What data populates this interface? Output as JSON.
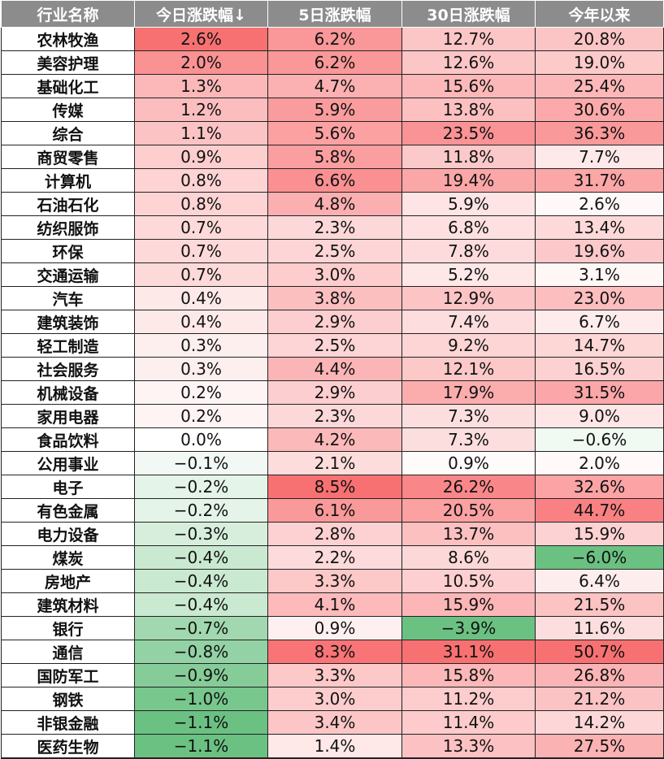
{
  "columns": [
    "行业名称",
    "今日涨跌幅↓",
    "5日涨跌幅",
    "30日涨跌幅",
    "今年以来"
  ],
  "colors": {
    "header_bg": "#8c8c8c",
    "positive": "#f8696b",
    "negative": "#63be7b",
    "neutral": "#ffffff"
  },
  "rows": [
    {
      "name": "农林牧渔",
      "d1": "2.6%",
      "d5": "6.2%",
      "d30": "12.7%",
      "ytd": "20.8%"
    },
    {
      "name": "美容护理",
      "d1": "2.0%",
      "d5": "6.2%",
      "d30": "12.6%",
      "ytd": "19.0%"
    },
    {
      "name": "基础化工",
      "d1": "1.3%",
      "d5": "4.7%",
      "d30": "15.6%",
      "ytd": "25.4%"
    },
    {
      "name": "传媒",
      "d1": "1.2%",
      "d5": "5.9%",
      "d30": "13.8%",
      "ytd": "30.6%"
    },
    {
      "name": "综合",
      "d1": "1.1%",
      "d5": "5.6%",
      "d30": "23.5%",
      "ytd": "36.3%"
    },
    {
      "name": "商贸零售",
      "d1": "0.9%",
      "d5": "5.8%",
      "d30": "11.8%",
      "ytd": "7.7%"
    },
    {
      "name": "计算机",
      "d1": "0.8%",
      "d5": "6.6%",
      "d30": "19.4%",
      "ytd": "31.7%"
    },
    {
      "name": "石油石化",
      "d1": "0.8%",
      "d5": "4.8%",
      "d30": "5.9%",
      "ytd": "2.6%"
    },
    {
      "name": "纺织服饰",
      "d1": "0.7%",
      "d5": "2.3%",
      "d30": "6.8%",
      "ytd": "13.4%"
    },
    {
      "name": "环保",
      "d1": "0.7%",
      "d5": "2.5%",
      "d30": "7.8%",
      "ytd": "19.6%"
    },
    {
      "name": "交通运输",
      "d1": "0.7%",
      "d5": "3.0%",
      "d30": "5.2%",
      "ytd": "3.1%"
    },
    {
      "name": "汽车",
      "d1": "0.4%",
      "d5": "3.8%",
      "d30": "12.9%",
      "ytd": "23.0%"
    },
    {
      "name": "建筑装饰",
      "d1": "0.4%",
      "d5": "2.9%",
      "d30": "7.4%",
      "ytd": "6.7%"
    },
    {
      "name": "轻工制造",
      "d1": "0.3%",
      "d5": "2.5%",
      "d30": "9.2%",
      "ytd": "14.7%"
    },
    {
      "name": "社会服务",
      "d1": "0.3%",
      "d5": "4.4%",
      "d30": "12.1%",
      "ytd": "16.5%"
    },
    {
      "name": "机械设备",
      "d1": "0.2%",
      "d5": "2.9%",
      "d30": "17.9%",
      "ytd": "31.5%"
    },
    {
      "name": "家用电器",
      "d1": "0.2%",
      "d5": "2.3%",
      "d30": "7.3%",
      "ytd": "9.0%"
    },
    {
      "name": "食品饮料",
      "d1": "0.0%",
      "d5": "4.2%",
      "d30": "7.3%",
      "ytd": "−0.6%"
    },
    {
      "name": "公用事业",
      "d1": "−0.1%",
      "d5": "2.1%",
      "d30": "0.9%",
      "ytd": "2.0%"
    },
    {
      "name": "电子",
      "d1": "−0.2%",
      "d5": "8.5%",
      "d30": "26.2%",
      "ytd": "32.6%"
    },
    {
      "name": "有色金属",
      "d1": "−0.2%",
      "d5": "6.1%",
      "d30": "20.5%",
      "ytd": "44.7%"
    },
    {
      "name": "电力设备",
      "d1": "−0.3%",
      "d5": "2.8%",
      "d30": "13.7%",
      "ytd": "15.9%"
    },
    {
      "name": "煤炭",
      "d1": "−0.4%",
      "d5": "2.2%",
      "d30": "8.6%",
      "ytd": "−6.0%"
    },
    {
      "name": "房地产",
      "d1": "−0.4%",
      "d5": "3.3%",
      "d30": "10.5%",
      "ytd": "6.4%"
    },
    {
      "name": "建筑材料",
      "d1": "−0.4%",
      "d5": "4.1%",
      "d30": "15.9%",
      "ytd": "21.5%"
    },
    {
      "name": "银行",
      "d1": "−0.7%",
      "d5": "0.9%",
      "d30": "−3.9%",
      "ytd": "11.6%"
    },
    {
      "name": "通信",
      "d1": "−0.8%",
      "d5": "8.3%",
      "d30": "31.1%",
      "ytd": "50.7%"
    },
    {
      "name": "国防军工",
      "d1": "−0.9%",
      "d5": "3.3%",
      "d30": "15.8%",
      "ytd": "26.8%"
    },
    {
      "name": "钢铁",
      "d1": "−1.0%",
      "d5": "3.0%",
      "d30": "11.2%",
      "ytd": "21.2%"
    },
    {
      "name": "非银金融",
      "d1": "−1.1%",
      "d5": "3.4%",
      "d30": "11.4%",
      "ytd": "14.2%"
    },
    {
      "name": "医药生物",
      "d1": "−1.1%",
      "d5": "1.4%",
      "d30": "13.3%",
      "ytd": "27.5%"
    }
  ]
}
